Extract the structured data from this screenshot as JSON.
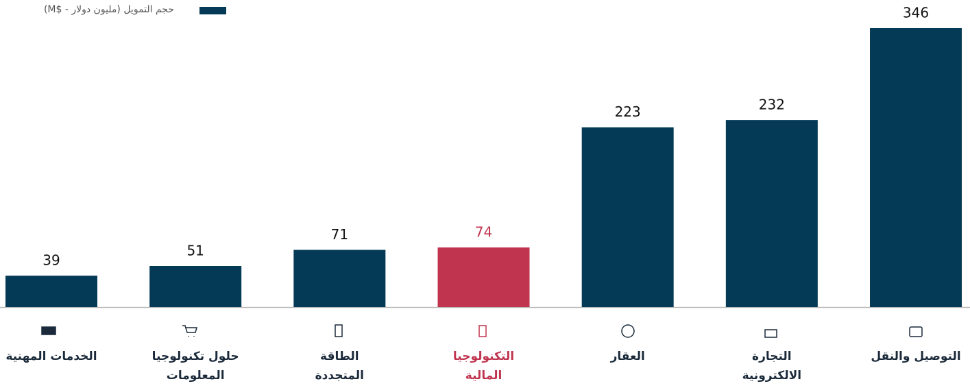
{
  "chart_data": {
    "type": "bar",
    "categories": [
      "الخدمات المهنية",
      "حلول تكنولوجيا\nالمعلومات",
      "الطاقة\nالمتجددة",
      "التكنولوجيا\nالمالية",
      "العقار",
      "التجارة\nالالكترونية",
      "التوصيل والنقل"
    ],
    "series": [
      {
        "name": "حجم التمويل (مليون دولار - $M)",
        "color": "#053a57",
        "values": [
          39,
          51,
          71,
          74,
          223,
          232,
          346
        ],
        "colors": [
          "#053a57",
          "#053a57",
          "#053a57",
          "#c0344f",
          "#053a57",
          "#053a57",
          "#053a57"
        ]
      }
    ],
    "legend": "top-left"
  }
}
